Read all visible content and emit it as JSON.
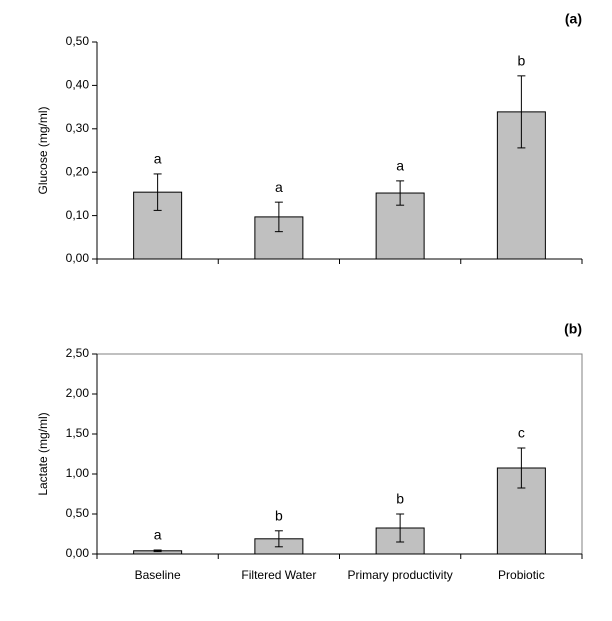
{
  "chart_data": [
    {
      "type": "bar",
      "panel_label": "(a)",
      "ylabel": "Glucose (mg/ml)",
      "categories": [
        null,
        null,
        null,
        null
      ],
      "values": [
        0.154,
        0.097,
        0.152,
        0.339
      ],
      "errors": [
        0.042,
        0.034,
        0.028,
        0.083
      ],
      "annotations": [
        "a",
        "a",
        "a",
        "b"
      ],
      "color": "#c0c0c0",
      "frame": false,
      "ylim": [
        0,
        0.5
      ],
      "yticks": [
        {
          "value": 0,
          "label": "0,00"
        },
        {
          "value": 0.1,
          "label": "0,10"
        },
        {
          "value": 0.2,
          "label": "0,20"
        },
        {
          "value": 0.3,
          "label": "0,30"
        },
        {
          "value": 0.4,
          "label": "0,40"
        },
        {
          "value": 0.5,
          "label": "0,50"
        }
      ]
    },
    {
      "type": "bar",
      "panel_label": "(b)",
      "ylabel": "Lactate (mg/ml)",
      "categories": [
        "Baseline",
        "Filtered Water",
        "Primary productivity",
        "Probiotic"
      ],
      "values": [
        0.04,
        0.19,
        0.325,
        1.075
      ],
      "errors": [
        0.01,
        0.1,
        0.175,
        0.25
      ],
      "annotations": [
        "a",
        "b",
        "b",
        "c"
      ],
      "color": "#c0c0c0",
      "frame": true,
      "ylim": [
        0,
        2.5
      ],
      "yticks": [
        {
          "value": 0,
          "label": "0,00"
        },
        {
          "value": 0.5,
          "label": "0,50"
        },
        {
          "value": 1,
          "label": "1,00"
        },
        {
          "value": 1.5,
          "label": "1,50"
        },
        {
          "value": 2,
          "label": "2,00"
        },
        {
          "value": 2.5,
          "label": "2,50"
        }
      ]
    }
  ]
}
